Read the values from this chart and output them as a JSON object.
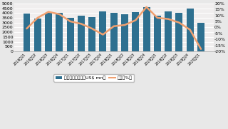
{
  "categories": [
    "2016年Q1",
    "2016年Q2",
    "2016年Q3",
    "2016年Q4",
    "2017年Q1",
    "2017年Q2",
    "2017年Q3",
    "2017年Q4",
    "2018年Q1",
    "2018年Q2",
    "2018年Q3",
    "2018年Q4",
    "2019年Q1",
    "2019年Q2",
    "2019年Q3",
    "2019年Q4",
    "2020年Q1"
  ],
  "bar_values": [
    3950,
    3450,
    4050,
    4000,
    3500,
    3700,
    3600,
    4200,
    4000,
    3900,
    4100,
    4600,
    3750,
    4200,
    4000,
    4500,
    3000
  ],
  "line_values": [
    -1,
    8,
    13,
    11,
    5,
    3,
    -1,
    -6,
    1,
    2,
    6,
    17,
    8,
    7,
    4,
    -2,
    -18
  ],
  "bar_color": "#2e7090",
  "line_color": "#f0a070",
  "ylim_left": [
    0,
    5000
  ],
  "ylim_right": [
    -20,
    20
  ],
  "yticks_left": [
    0,
    500,
    1000,
    1500,
    2000,
    2500,
    3000,
    3500,
    4000,
    4500,
    5000
  ],
  "yticks_right": [
    -20,
    -15,
    -10,
    -5,
    0,
    5,
    10,
    15,
    20
  ],
  "legend_bar": "路由器市场规模（US$ mn）",
  "legend_line": "增速（%）",
  "bg_color": "#e8e8e8",
  "plot_bg": "#f0eeee",
  "grid_color": "#ffffff"
}
